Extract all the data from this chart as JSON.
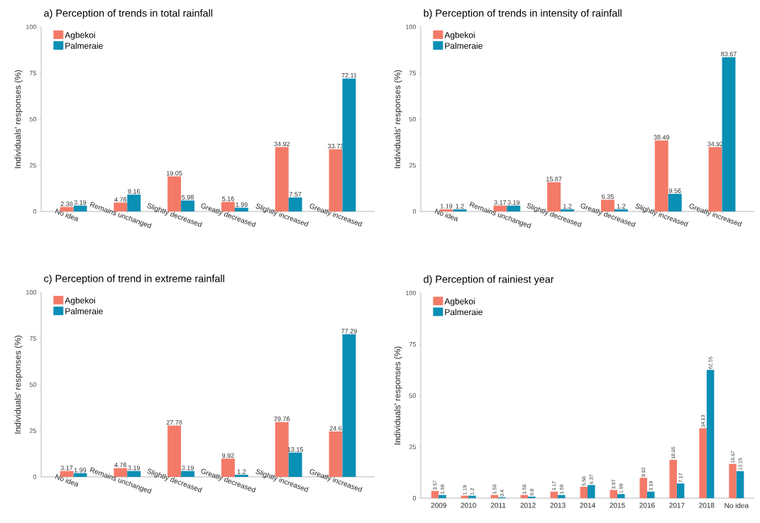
{
  "chart_data": [
    {
      "type": "bar",
      "title": "a) Perception of trends in total rainfall",
      "ylabel": "Individuals' responses (%)",
      "categories": [
        "No idea",
        "Remains unchanged",
        "Slightly decreased",
        "Greatly decreased",
        "Slightly increased",
        "Greatly increased"
      ],
      "series": [
        {
          "name": "Agbekoi",
          "color": "#f47a68",
          "values": [
            2.38,
            4.76,
            19.05,
            5.16,
            34.92,
            33.73
          ]
        },
        {
          "name": "Palmeraie",
          "color": "#0a8fb5",
          "values": [
            3.19,
            9.16,
            5.98,
            1.99,
            7.57,
            72.11
          ]
        }
      ],
      "ylim": [
        0,
        100
      ],
      "yticks": [
        0,
        25,
        50,
        75,
        100
      ],
      "legend": "top left",
      "data_labels": true
    },
    {
      "type": "bar",
      "title": "b) Perception of trends in intensity of rainfall",
      "ylabel": "Individuals' responses (%)",
      "categories": [
        "No idea",
        "Remains unchanged",
        "Slightly decreased",
        "Greatly decreased",
        "Slightly increased",
        "Greatly increased"
      ],
      "series": [
        {
          "name": "Agbekoi",
          "color": "#f47a68",
          "values": [
            1.19,
            3.17,
            15.87,
            6.35,
            38.49,
            34.92
          ]
        },
        {
          "name": "Palmeraie",
          "color": "#0a8fb5",
          "values": [
            1.2,
            3.19,
            1.2,
            1.2,
            9.56,
            83.67
          ]
        }
      ],
      "ylim": [
        0,
        100
      ],
      "yticks": [
        0,
        25,
        50,
        75,
        100
      ],
      "legend": "top left",
      "data_labels": true
    },
    {
      "type": "bar",
      "title": "c) Perception of trend in extreme rainfall",
      "ylabel": "Individuals' responses (%)",
      "categories": [
        "No idea",
        "Remains unchanged",
        "Slightly decreased",
        "Greatly decreased",
        "Slightly increased",
        "Greatly increased"
      ],
      "series": [
        {
          "name": "Agbekoi",
          "color": "#f47a68",
          "values": [
            3.17,
            4.76,
            27.78,
            9.92,
            29.76,
            24.6
          ]
        },
        {
          "name": "Palmeraie",
          "color": "#0a8fb5",
          "values": [
            1.99,
            3.19,
            3.19,
            1.2,
            13.15,
            77.29
          ]
        }
      ],
      "ylim": [
        0,
        100
      ],
      "yticks": [
        0,
        25,
        50,
        75,
        100
      ],
      "legend": "top left",
      "data_labels": true
    },
    {
      "type": "bar",
      "title": "d) Perception of rainiest year",
      "ylabel": "Individuals' responses (%)",
      "categories": [
        "2009",
        "2010",
        "2011",
        "2012",
        "2013",
        "2014",
        "2015",
        "2016",
        "2017",
        "2018",
        "No idea"
      ],
      "series": [
        {
          "name": "Agbekoi",
          "color": "#f47a68",
          "values": [
            3.57,
            1.19,
            1.59,
            1.59,
            3.17,
            5.56,
            3.97,
            9.92,
            18.65,
            34.13,
            16.67
          ]
        },
        {
          "name": "Palmeraie",
          "color": "#0a8fb5",
          "values": [
            1.59,
            1.2,
            0.4,
            0.8,
            1.59,
            6.37,
            1.99,
            3.19,
            7.17,
            62.55,
            13.15
          ]
        }
      ],
      "ylim": [
        0,
        100
      ],
      "yticks": [
        0,
        25,
        50,
        75,
        100
      ],
      "legend": "top left",
      "data_labels": true
    }
  ]
}
